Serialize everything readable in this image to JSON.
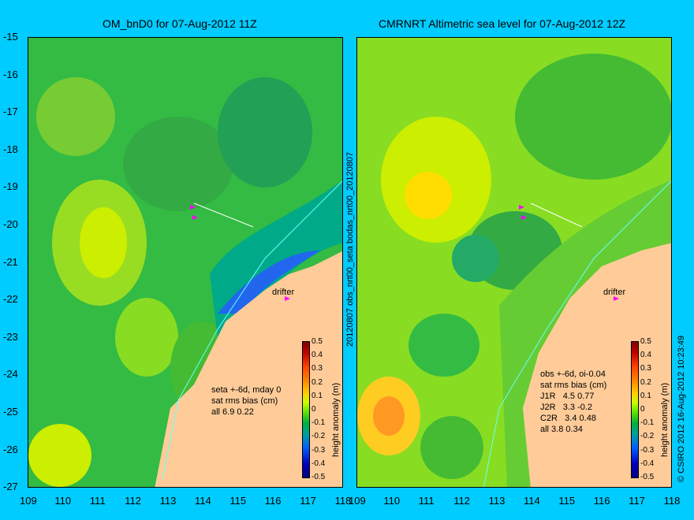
{
  "panels": [
    {
      "title": "OM_bnD0 for 07-Aug-2012 11Z",
      "stats": [
        "seta +-6d, mday 0",
        "sat rms bias (cm)",
        "all 6.9 0.22"
      ],
      "drifter": "drifter",
      "colorbar_label": "height anomaly (m)"
    },
    {
      "title": "CMRNRT Altimetric sea level  for 07-Aug-2012 12Z",
      "stats": [
        "obs +-6d, oi-0.04",
        "sat rms bias (cm)",
        "J1R   4.5 0.77",
        "J2R   3.3 -0.2",
        "C2R   3.4 0.48",
        "all 3.8 0.34"
      ],
      "drifter": "drifter",
      "colorbar_label": "height anomaly (m)"
    }
  ],
  "side_label": "20120807 obs_nrt00_seta     bodas_nrt00_20120807",
  "copyright": "© CSIRO 2012   16-Aug-2012 10:23:49",
  "y_ticks": [
    "-15",
    "-16",
    "-17",
    "-18",
    "-19",
    "-20",
    "-21",
    "-22",
    "-23",
    "-24",
    "-25",
    "-26",
    "-27"
  ],
  "x_ticks": [
    "109",
    "110",
    "111",
    "112",
    "113",
    "114",
    "115",
    "116",
    "117",
    "118"
  ],
  "colorbar_ticks": [
    "0.5",
    "0.4",
    "0.3",
    "0.2",
    "0.1",
    "0",
    "-0.1",
    "-0.2",
    "-0.3",
    "-0.4",
    "-0.5"
  ],
  "colors": {
    "background": "#00ccff",
    "land": "#ffcc99",
    "sea_green": "#22bb44",
    "arrow": "#ff00ff"
  }
}
